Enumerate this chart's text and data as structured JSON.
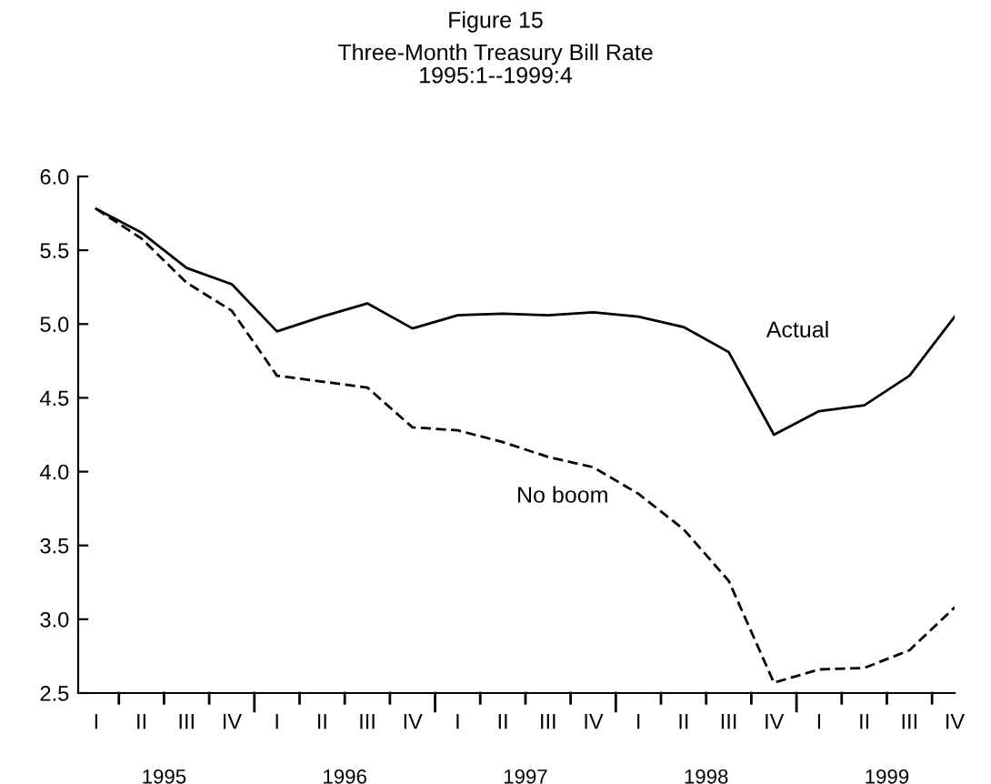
{
  "chart_data": {
    "type": "line",
    "title": "Figure 15",
    "subtitle": "Three-Month Treasury Bill Rate\n1995:1--1999:4",
    "categories": [
      "I",
      "II",
      "III",
      "IV",
      "I",
      "II",
      "III",
      "IV",
      "I",
      "II",
      "III",
      "IV",
      "I",
      "II",
      "III",
      "IV",
      "I",
      "II",
      "III",
      "IV"
    ],
    "series": [
      {
        "name": "Actual",
        "color": "#000000",
        "line_style": "solid",
        "values": [
          5.78,
          5.62,
          5.38,
          5.27,
          4.95,
          5.05,
          5.14,
          4.97,
          5.06,
          5.07,
          5.06,
          5.08,
          5.05,
          4.98,
          4.81,
          4.25,
          4.41,
          4.45,
          4.65,
          5.05
        ]
      },
      {
        "name": "No boom",
        "color": "#000000",
        "line_style": "dashed",
        "values": [
          5.78,
          5.58,
          5.28,
          5.09,
          4.65,
          4.61,
          4.57,
          4.3,
          4.28,
          4.2,
          4.1,
          4.03,
          3.85,
          3.61,
          3.26,
          2.57,
          2.66,
          2.67,
          2.79,
          3.08
        ]
      }
    ],
    "annotations": [
      "1995",
      "1996",
      "1997",
      "1998",
      "1999"
    ],
    "ylim": [
      2.5,
      6.0
    ],
    "yticks": [
      {
        "value": 2.5,
        "label": "2.5"
      },
      {
        "value": 3.0,
        "label": "3.0"
      },
      {
        "value": 3.5,
        "label": "3.5"
      },
      {
        "value": 4.0,
        "label": "4.0"
      },
      {
        "value": 4.5,
        "label": "4.5"
      },
      {
        "value": 5.0,
        "label": "5.0"
      },
      {
        "value": 5.5,
        "label": "5.5"
      },
      {
        "value": 6.0,
        "label": "6.0"
      }
    ],
    "grid": false,
    "legend": false,
    "marker": "none"
  }
}
